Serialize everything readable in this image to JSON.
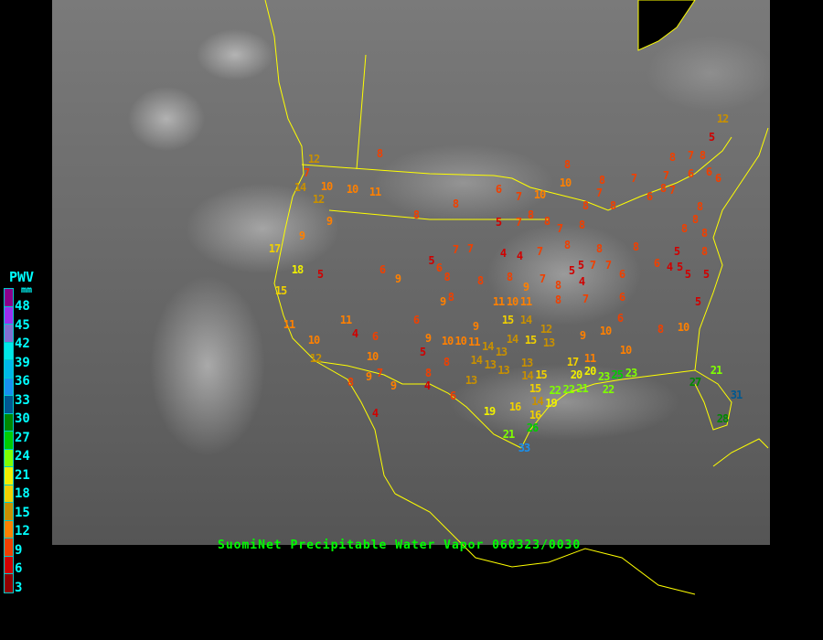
{
  "caption": "SuomiNet Precipitable Water Vapor 060323/0030",
  "legend": {
    "title": "PWV",
    "unit": "mm",
    "labels": [
      "48",
      "45",
      "42",
      "39",
      "36",
      "33",
      "30",
      "27",
      "24",
      "21",
      "18",
      "15",
      "12",
      "9",
      "6",
      "3"
    ],
    "colors": [
      "#8a008a",
      "#9a30f0",
      "#8070d0",
      "#00e8e8",
      "#00b8e8",
      "#1890f0",
      "#005890",
      "#008800",
      "#00cc00",
      "#80ff00",
      "#f0f000",
      "#f0d000",
      "#c89000",
      "#ff8000",
      "#f04000",
      "#d00000",
      "#900000"
    ]
  },
  "map_colors": {
    "background": "#000000",
    "boundaries": "#ffff00",
    "caption": "#00ff00",
    "legend_text": "#00ffff"
  },
  "stations": [
    8,
    7,
    12,
    14,
    12,
    10,
    10,
    11,
    9,
    9,
    17,
    18,
    5,
    15,
    11,
    10,
    12,
    11,
    4,
    6,
    10,
    7,
    9,
    8,
    9,
    4,
    8,
    8,
    6,
    9,
    6,
    5,
    9,
    8,
    8,
    4,
    6,
    6,
    7,
    10,
    8,
    10,
    5,
    7,
    8,
    8,
    7,
    7,
    7,
    4,
    4,
    7,
    8,
    8,
    8,
    5,
    6,
    8,
    8,
    9,
    8,
    8,
    9,
    7,
    8,
    8,
    5,
    5,
    4,
    7,
    7,
    6,
    8,
    6,
    6,
    7,
    9,
    10,
    10,
    8,
    10,
    11,
    10,
    11,
    15,
    14,
    15,
    14,
    13,
    12,
    9,
    10,
    11,
    14,
    13,
    14,
    13,
    13,
    13,
    10,
    13,
    15,
    14,
    15,
    14,
    19,
    19,
    16,
    16,
    21,
    26,
    33,
    22,
    22,
    21,
    20,
    17,
    11,
    20,
    23,
    25,
    23,
    22,
    27,
    21,
    28,
    31,
    8,
    7,
    8,
    8,
    7,
    6,
    8,
    7,
    7,
    8,
    7,
    8,
    6,
    6,
    5,
    12,
    6,
    8,
    8,
    8,
    8,
    8,
    5,
    5,
    4,
    5,
    5,
    6,
    5
  ]
}
